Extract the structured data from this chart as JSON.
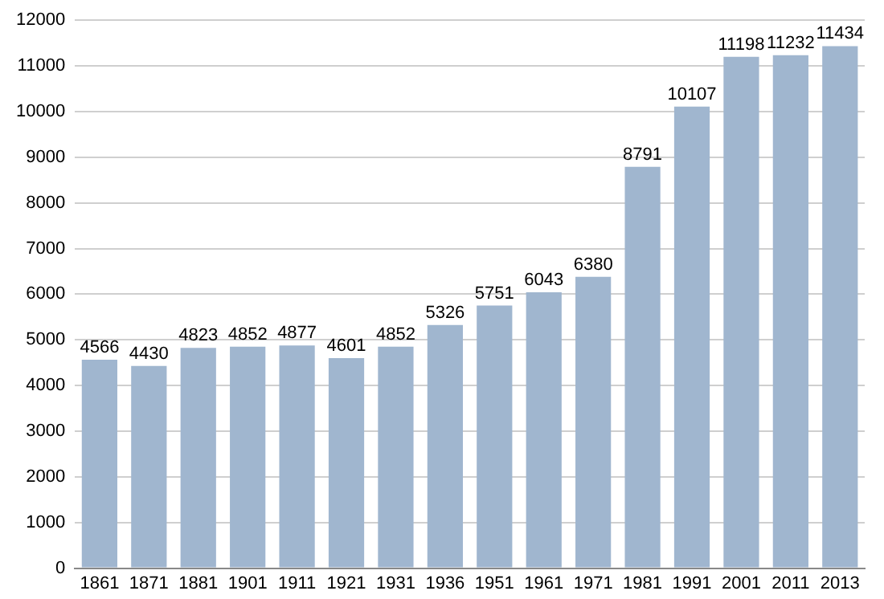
{
  "chart_data": {
    "type": "bar",
    "categories": [
      "1861",
      "1871",
      "1881",
      "1901",
      "1911",
      "1921",
      "1931",
      "1936",
      "1951",
      "1961",
      "1971",
      "1981",
      "1991",
      "2001",
      "2011",
      "2013"
    ],
    "values": [
      4566,
      4430,
      4823,
      4852,
      4877,
      4601,
      4852,
      5326,
      5751,
      6043,
      6380,
      8791,
      10107,
      11198,
      11232,
      11434
    ],
    "color": "#a0b6cf",
    "ylim": [
      0,
      12000
    ],
    "yticks": [
      0,
      1000,
      2000,
      3000,
      4000,
      5000,
      6000,
      7000,
      8000,
      9000,
      10000,
      11000,
      12000
    ],
    "grid": "y",
    "data_labels": true
  }
}
